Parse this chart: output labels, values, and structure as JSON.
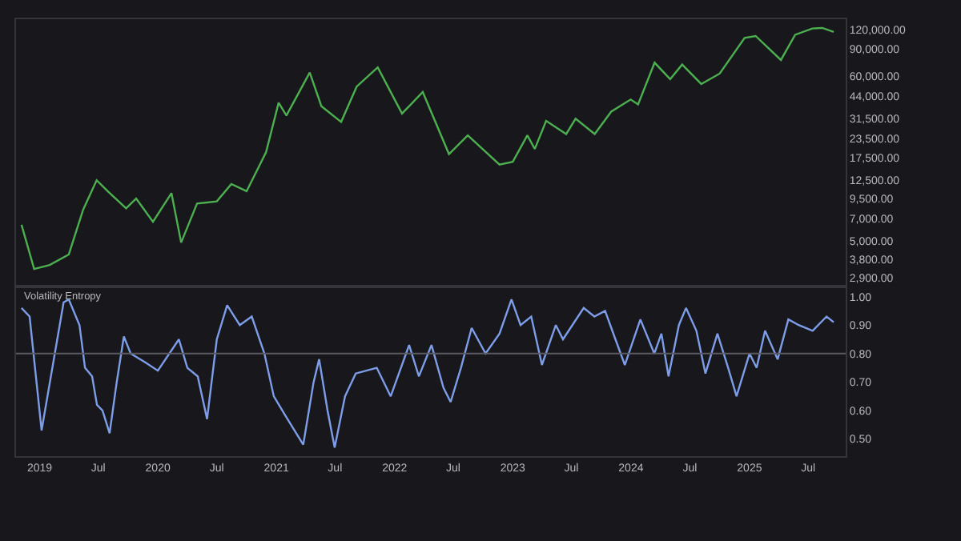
{
  "chart_data": [
    {
      "type": "line",
      "log": "y",
      "tick_labels": "y",
      "grid": false,
      "xlim": [
        "2018-10-20",
        "2025-10-25"
      ],
      "ylim": [
        2600,
        140000
      ],
      "yticks": [
        {
          "value": 120000,
          "label": "120,000.00"
        },
        {
          "value": 90000,
          "label": "90,000.00"
        },
        {
          "value": 60000,
          "label": "60,000.00"
        },
        {
          "value": 44000,
          "label": "44,000.00"
        },
        {
          "value": 31500,
          "label": "31,500.00"
        },
        {
          "value": 23500,
          "label": "23,500.00"
        },
        {
          "value": 17500,
          "label": "17,500.00"
        },
        {
          "value": 12500,
          "label": "12,500.00"
        },
        {
          "value": 9500,
          "label": "9,500.00"
        },
        {
          "value": 7000,
          "label": "7,000.00"
        },
        {
          "value": 5000,
          "label": "5,000.00"
        },
        {
          "value": 3800,
          "label": "3,800.00"
        },
        {
          "value": 2900,
          "label": "2,900.00"
        }
      ],
      "series": [
        {
          "color": "#4caf50",
          "x": [
            "2018-11-06",
            "2018-12-15",
            "2019-02-01",
            "2019-04-01",
            "2019-05-15",
            "2019-06-26",
            "2019-08-01",
            "2019-09-25",
            "2019-10-26",
            "2019-12-17",
            "2020-02-12",
            "2020-03-13",
            "2020-05-01",
            "2020-07-01",
            "2020-08-15",
            "2020-10-01",
            "2020-11-30",
            "2021-01-08",
            "2021-02-01",
            "2021-04-14",
            "2021-05-20",
            "2021-07-20",
            "2021-09-06",
            "2021-11-10",
            "2022-01-24",
            "2022-03-29",
            "2022-06-18",
            "2022-08-15",
            "2022-11-21",
            "2023-01-01",
            "2023-02-15",
            "2023-03-10",
            "2023-04-14",
            "2023-06-15",
            "2023-07-14",
            "2023-09-11",
            "2023-11-01",
            "2023-12-31",
            "2024-01-23",
            "2024-03-14",
            "2024-05-01",
            "2024-06-07",
            "2024-08-05",
            "2024-10-01",
            "2024-12-17",
            "2025-01-20",
            "2025-04-08",
            "2025-05-22",
            "2025-07-14",
            "2025-08-14",
            "2025-09-18"
          ],
          "values": [
            6400,
            3300,
            3500,
            4100,
            8000,
            12500,
            10500,
            8200,
            9500,
            6700,
            10300,
            4900,
            8800,
            9100,
            11800,
            10600,
            19000,
            40000,
            33000,
            63000,
            38000,
            30000,
            51000,
            68000,
            34000,
            47000,
            18500,
            24500,
            15800,
            16500,
            24500,
            20000,
            30500,
            25000,
            31500,
            25000,
            35000,
            42000,
            39000,
            73000,
            57000,
            71000,
            53000,
            62000,
            106000,
            109000,
            76000,
            111000,
            122000,
            123000,
            116000
          ]
        }
      ]
    },
    {
      "type": "line",
      "title": "Volatility Entropy",
      "grid": false,
      "xlim": [
        "2018-10-20",
        "2025-10-25"
      ],
      "xticks": [
        {
          "value": "2019-01-01",
          "label": "2019"
        },
        {
          "value": "2019-07-01",
          "label": "Jul"
        },
        {
          "value": "2020-01-01",
          "label": "2020"
        },
        {
          "value": "2020-07-01",
          "label": "Jul"
        },
        {
          "value": "2021-01-01",
          "label": "2021"
        },
        {
          "value": "2021-07-01",
          "label": "Jul"
        },
        {
          "value": "2022-01-01",
          "label": "2022"
        },
        {
          "value": "2022-07-01",
          "label": "Jul"
        },
        {
          "value": "2023-01-01",
          "label": "2023"
        },
        {
          "value": "2023-07-01",
          "label": "Jul"
        },
        {
          "value": "2024-01-01",
          "label": "2024"
        },
        {
          "value": "2024-07-01",
          "label": "Jul"
        },
        {
          "value": "2025-01-01",
          "label": "2025"
        },
        {
          "value": "2025-07-01",
          "label": "Jul"
        }
      ],
      "ylim": [
        0.44,
        1.03
      ],
      "yticks": [
        {
          "value": 1.0,
          "label": "1.00"
        },
        {
          "value": 0.9,
          "label": "0.90"
        },
        {
          "value": 0.8,
          "label": "0.80"
        },
        {
          "value": 0.7,
          "label": "0.70"
        },
        {
          "value": 0.6,
          "label": "0.60"
        },
        {
          "value": 0.5,
          "label": "0.50"
        }
      ],
      "ref_lines": [
        {
          "axis": "y",
          "value": 0.8,
          "color": "#5a5a60"
        }
      ],
      "series": [
        {
          "color": "#7d9de8",
          "x": [
            "2018-11-06",
            "2018-12-01",
            "2019-01-07",
            "2019-03-16",
            "2019-04-01",
            "2019-05-04",
            "2019-05-21",
            "2019-06-12",
            "2019-06-27",
            "2019-07-14",
            "2019-08-05",
            "2019-08-27",
            "2019-09-18",
            "2019-10-09",
            "2019-11-22",
            "2020-01-01",
            "2020-03-06",
            "2020-04-01",
            "2020-05-03",
            "2020-06-01",
            "2020-07-01",
            "2020-08-02",
            "2020-09-10",
            "2020-10-17",
            "2020-11-25",
            "2020-12-24",
            "2021-01-30",
            "2021-03-25",
            "2021-04-26",
            "2021-05-13",
            "2021-06-08",
            "2021-06-30",
            "2021-08-01",
            "2021-09-03",
            "2021-11-07",
            "2021-12-20",
            "2022-02-15",
            "2022-03-17",
            "2022-04-25",
            "2022-06-01",
            "2022-06-23",
            "2022-07-25",
            "2022-08-27",
            "2022-10-09",
            "2022-11-21",
            "2022-12-28",
            "2023-01-25",
            "2023-02-27",
            "2023-04-01",
            "2023-05-14",
            "2023-06-05",
            "2023-08-08",
            "2023-09-10",
            "2023-10-13",
            "2023-11-14",
            "2023-12-13",
            "2024-01-30",
            "2024-03-13",
            "2024-04-04",
            "2024-04-26",
            "2024-05-28",
            "2024-06-19",
            "2024-07-21",
            "2024-08-18",
            "2024-09-24",
            "2024-10-27",
            "2024-11-22",
            "2025-01-01",
            "2025-01-23",
            "2025-02-18",
            "2025-03-29",
            "2025-05-01",
            "2025-06-02",
            "2025-07-15",
            "2025-08-27",
            "2025-09-18"
          ],
          "values": [
            0.96,
            0.93,
            0.53,
            0.98,
            0.99,
            0.9,
            0.75,
            0.72,
            0.62,
            0.6,
            0.52,
            0.7,
            0.86,
            0.8,
            0.77,
            0.74,
            0.85,
            0.75,
            0.72,
            0.57,
            0.85,
            0.97,
            0.9,
            0.93,
            0.8,
            0.65,
            0.58,
            0.48,
            0.7,
            0.78,
            0.6,
            0.47,
            0.65,
            0.73,
            0.75,
            0.65,
            0.83,
            0.72,
            0.83,
            0.68,
            0.63,
            0.75,
            0.89,
            0.8,
            0.87,
            0.99,
            0.9,
            0.93,
            0.76,
            0.9,
            0.85,
            0.96,
            0.93,
            0.95,
            0.85,
            0.76,
            0.92,
            0.8,
            0.87,
            0.72,
            0.9,
            0.96,
            0.88,
            0.73,
            0.87,
            0.75,
            0.65,
            0.8,
            0.75,
            0.88,
            0.78,
            0.92,
            0.9,
            0.88,
            0.93,
            0.91
          ]
        }
      ]
    }
  ]
}
